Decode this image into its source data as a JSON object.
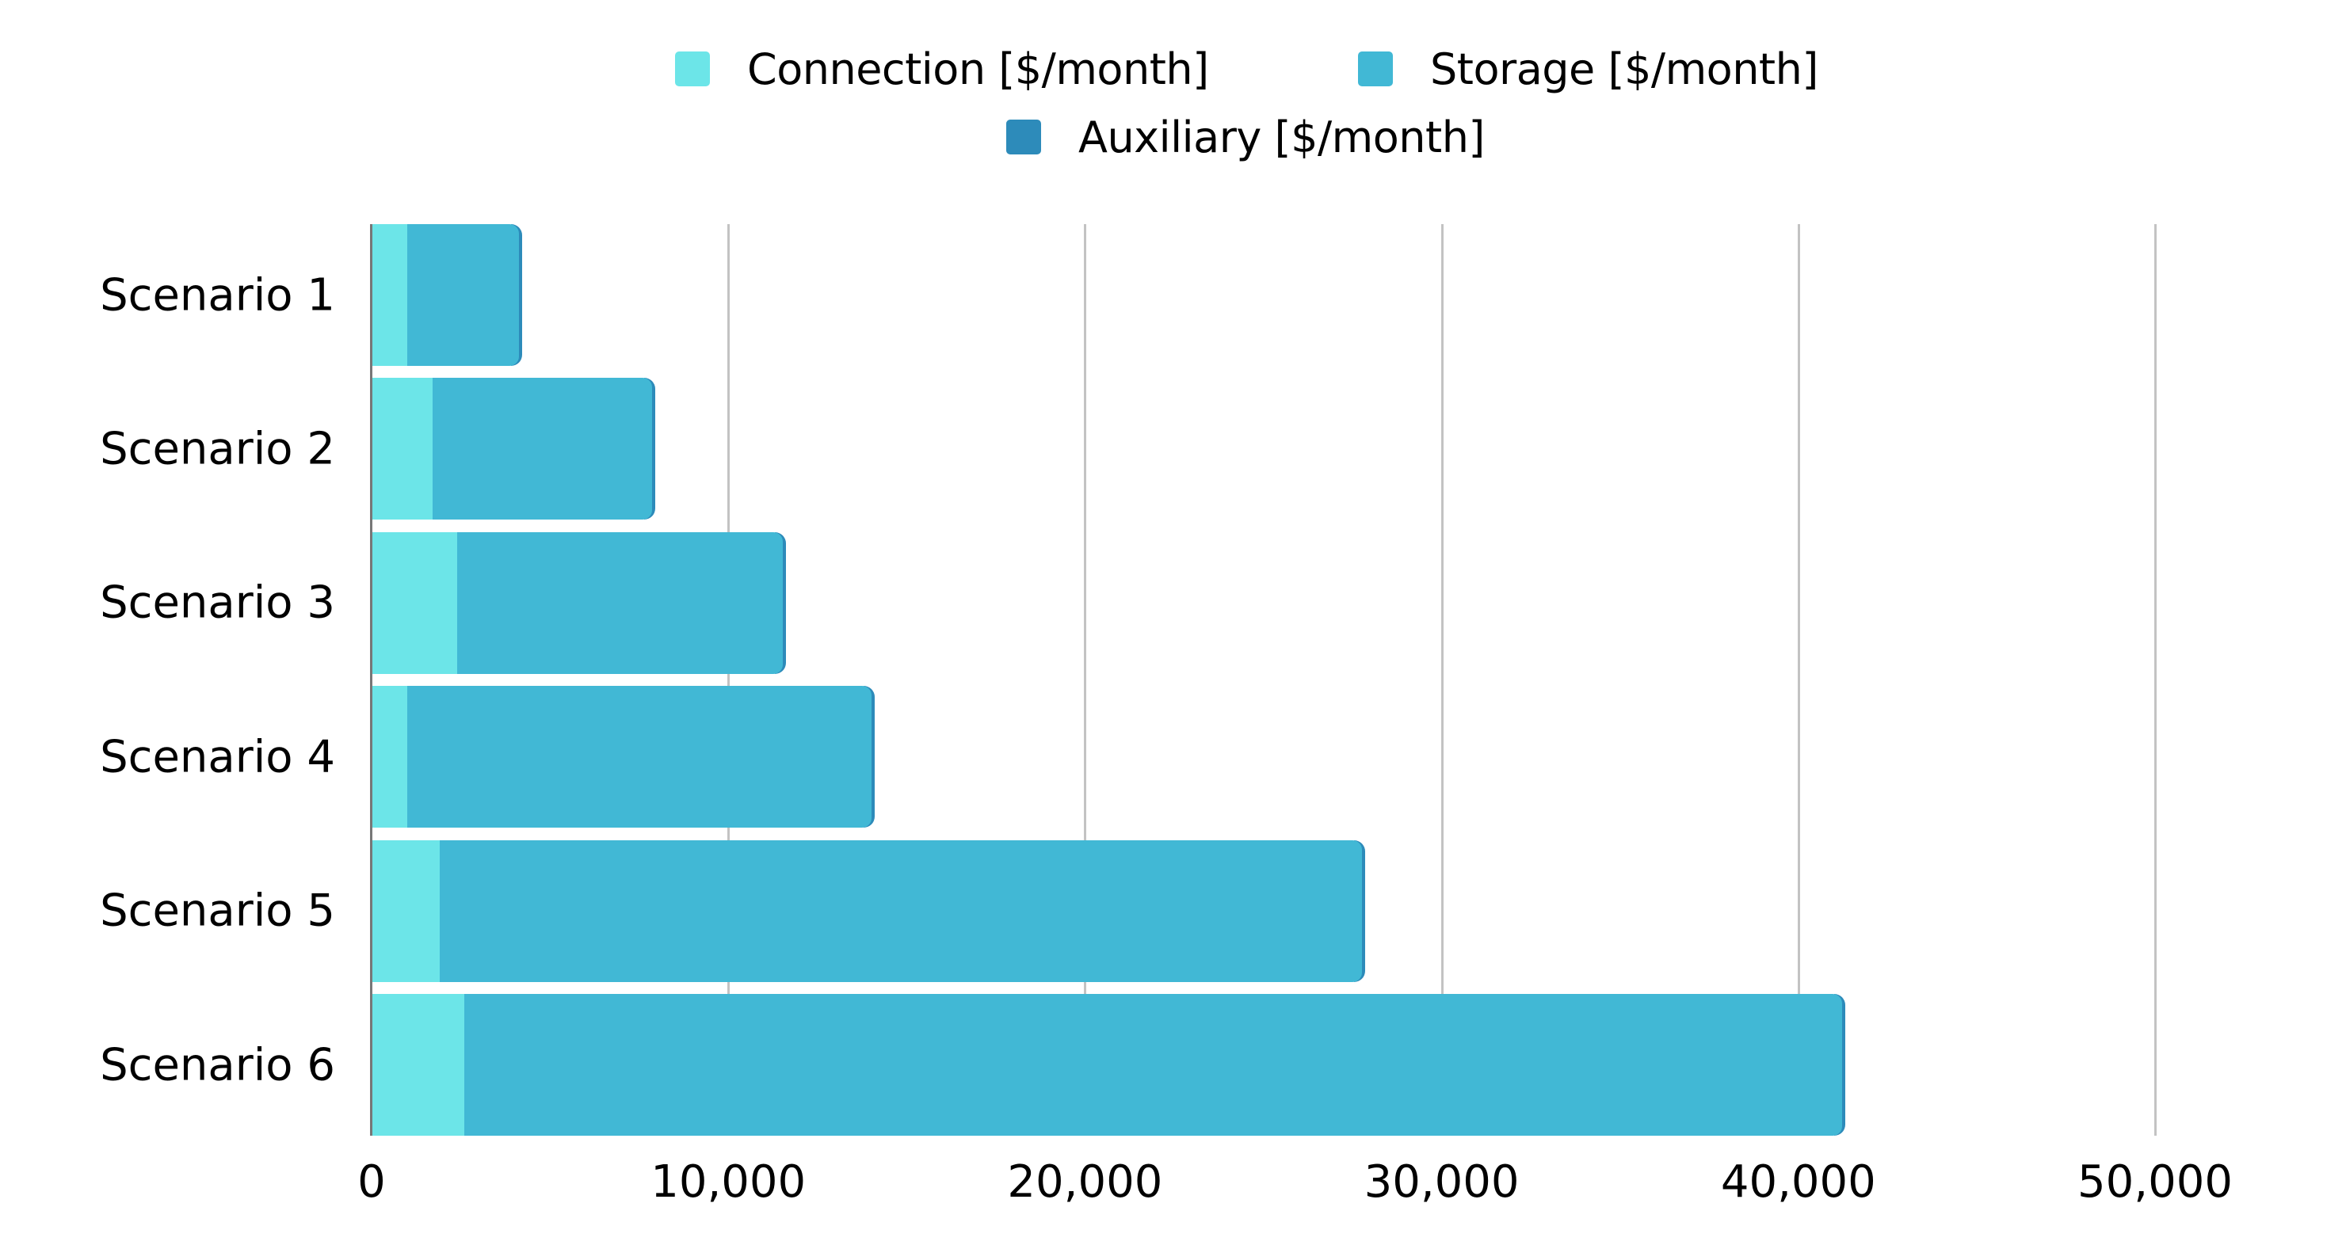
{
  "legend": [
    {
      "label": "Connection [$/month]",
      "color": "#6ce5e8"
    },
    {
      "label": "Storage [$/month]",
      "color": "#41b8d5"
    },
    {
      "label": "Auxiliary [$/month]",
      "color": "#2d8bba"
    }
  ],
  "x_ticks": [
    "0",
    "10,000",
    "20,000",
    "30,000",
    "40,000",
    "50,000"
  ],
  "categories": [
    "Scenario 1",
    "Scenario 2",
    "Scenario 3",
    "Scenario 4",
    "Scenario 5",
    "Scenario 6"
  ],
  "chart_data": {
    "type": "bar",
    "orientation": "horizontal",
    "stacked": true,
    "title": "",
    "xlabel": "",
    "ylabel": "",
    "xlim": [
      0,
      50000
    ],
    "x_ticks": [
      0,
      10000,
      20000,
      30000,
      40000,
      50000
    ],
    "grid": "vertical",
    "legend_position": "top",
    "categories": [
      "Scenario 1",
      "Scenario 2",
      "Scenario 3",
      "Scenario 4",
      "Scenario 5",
      "Scenario 6"
    ],
    "series": [
      {
        "name": "Connection [$/month]",
        "color": "#6ce5e8",
        "values": [
          1000,
          1700,
          2400,
          1000,
          1900,
          2600
        ]
      },
      {
        "name": "Storage [$/month]",
        "color": "#41b8d5",
        "values": [
          2900,
          5950,
          8900,
          12800,
          25650,
          38400
        ]
      },
      {
        "name": "Auxiliary [$/month]",
        "color": "#2d8bba",
        "values": [
          80,
          90,
          90,
          90,
          80,
          90
        ]
      }
    ]
  }
}
